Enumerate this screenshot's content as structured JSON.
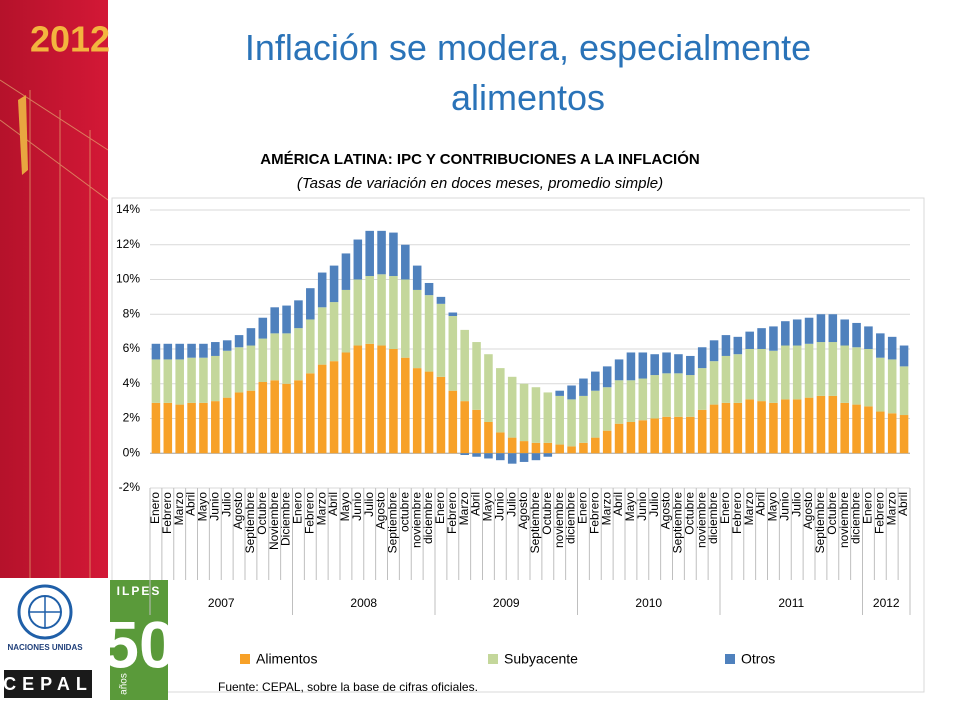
{
  "slide_title": "Inflación se modera, especialmente alimentos",
  "branding": {
    "year": "2012",
    "un": "NACIONES UNIDAS",
    "cepal": "CEPAL",
    "ilpes": "ILPES",
    "anniversary": "50",
    "anniversary_unit": "años"
  },
  "chart_data": {
    "type": "stacked_bar",
    "title": "AMÉRICA LATINA: IPC Y CONTRIBUCIONES A LA INFLACIÓN",
    "subtitle": "(Tasas de variación en doces meses, promedio simple)",
    "source": "Fuente: CEPAL, sobre la base de cifras oficiales.",
    "categories": [
      "Enero",
      "Febrero",
      "Marzo",
      "Abril",
      "Mayo",
      "Junio",
      "Julio",
      "Agosto",
      "Septiembre",
      "Octubre",
      "Noviembre",
      "Diciembre",
      "Enero",
      "Febrero",
      "Marzo",
      "Abril",
      "Mayo",
      "Junio",
      "Julio",
      "Agosto",
      "Septiembre",
      "octubre",
      "noviembre",
      "diciembre",
      "Enero",
      "Febrero",
      "Marzo",
      "Abril",
      "Mayo",
      "Junio",
      "Julio",
      "Agosto",
      "Septiembre",
      "Octubre",
      "noviembre",
      "diciembre",
      "Enero",
      "Febrero",
      "Marzo",
      "Abril",
      "Mayo",
      "Junio",
      "Julio",
      "Agosto",
      "Septiembre",
      "Octubre",
      "noviembre",
      "diciembre",
      "Enero",
      "Febrero",
      "Marzo",
      "Abril",
      "Mayo",
      "Junio",
      "Julio",
      "Agosto",
      "Septiembre",
      "Octubre",
      "noviembre",
      "diciembre",
      "Enero",
      "Febrero",
      "Marzo",
      "Abril"
    ],
    "groups": [
      {
        "label": "2007",
        "size": 12
      },
      {
        "label": "2008",
        "size": 12
      },
      {
        "label": "2009",
        "size": 12
      },
      {
        "label": "2010",
        "size": 12
      },
      {
        "label": "2011",
        "size": 12
      },
      {
        "label": "2012",
        "size": 4
      }
    ],
    "series": [
      {
        "name": "Alimentos",
        "color": "#f7a128",
        "values": [
          2.9,
          2.9,
          2.8,
          2.9,
          2.9,
          3.0,
          3.2,
          3.5,
          3.6,
          4.1,
          4.2,
          4.0,
          4.2,
          4.6,
          5.1,
          5.3,
          5.8,
          6.2,
          6.3,
          6.2,
          6.0,
          5.5,
          4.9,
          4.7,
          4.4,
          3.6,
          3.0,
          2.5,
          1.8,
          1.2,
          0.9,
          0.7,
          0.6,
          0.6,
          0.5,
          0.4,
          0.6,
          0.9,
          1.3,
          1.7,
          1.8,
          1.9,
          2.0,
          2.1,
          2.1,
          2.1,
          2.5,
          2.8,
          2.9,
          2.9,
          3.1,
          3.0,
          2.9,
          3.1,
          3.1,
          3.2,
          3.3,
          3.3,
          2.9,
          2.8,
          2.7,
          2.4,
          2.3,
          2.2
        ]
      },
      {
        "name": "Subyacente",
        "color": "#c4d79b",
        "values": [
          2.5,
          2.5,
          2.6,
          2.6,
          2.6,
          2.6,
          2.7,
          2.6,
          2.6,
          2.5,
          2.7,
          2.9,
          3.0,
          3.1,
          3.3,
          3.4,
          3.6,
          3.8,
          3.9,
          4.1,
          4.2,
          4.5,
          4.5,
          4.4,
          4.2,
          4.3,
          4.1,
          3.9,
          3.9,
          3.7,
          3.5,
          3.3,
          3.2,
          2.9,
          2.8,
          2.7,
          2.7,
          2.7,
          2.5,
          2.5,
          2.4,
          2.4,
          2.5,
          2.5,
          2.5,
          2.4,
          2.4,
          2.5,
          2.7,
          2.8,
          2.9,
          3.0,
          3.0,
          3.1,
          3.1,
          3.1,
          3.1,
          3.1,
          3.3,
          3.3,
          3.3,
          3.1,
          3.1,
          2.8
        ]
      },
      {
        "name": "Otros",
        "color": "#4f81bd",
        "values": [
          0.9,
          0.9,
          0.9,
          0.8,
          0.8,
          0.8,
          0.6,
          0.7,
          1.0,
          1.2,
          1.5,
          1.6,
          1.6,
          1.8,
          2.0,
          2.1,
          2.1,
          2.3,
          2.6,
          2.5,
          2.5,
          2.0,
          1.4,
          0.7,
          0.4,
          0.2,
          -0.1,
          -0.2,
          -0.3,
          -0.4,
          -0.6,
          -0.5,
          -0.4,
          -0.2,
          0.3,
          0.8,
          1.0,
          1.1,
          1.2,
          1.2,
          1.6,
          1.5,
          1.2,
          1.2,
          1.1,
          1.1,
          1.2,
          1.2,
          1.2,
          1.0,
          1.0,
          1.2,
          1.4,
          1.4,
          1.5,
          1.5,
          1.6,
          1.6,
          1.5,
          1.4,
          1.3,
          1.4,
          1.3,
          1.2
        ]
      }
    ],
    "ylim": [
      -2,
      14
    ],
    "yticks": [
      {
        "value": -2,
        "label": "-2%"
      },
      {
        "value": 0,
        "label": "0%"
      },
      {
        "value": 2,
        "label": "2%"
      },
      {
        "value": 4,
        "label": "4%"
      },
      {
        "value": 6,
        "label": "6%"
      },
      {
        "value": 8,
        "label": "8%"
      },
      {
        "value": 10,
        "label": "10%"
      },
      {
        "value": 12,
        "label": "12%"
      },
      {
        "value": 14,
        "label": "14%"
      }
    ],
    "grid": true,
    "legend": "bottom"
  }
}
